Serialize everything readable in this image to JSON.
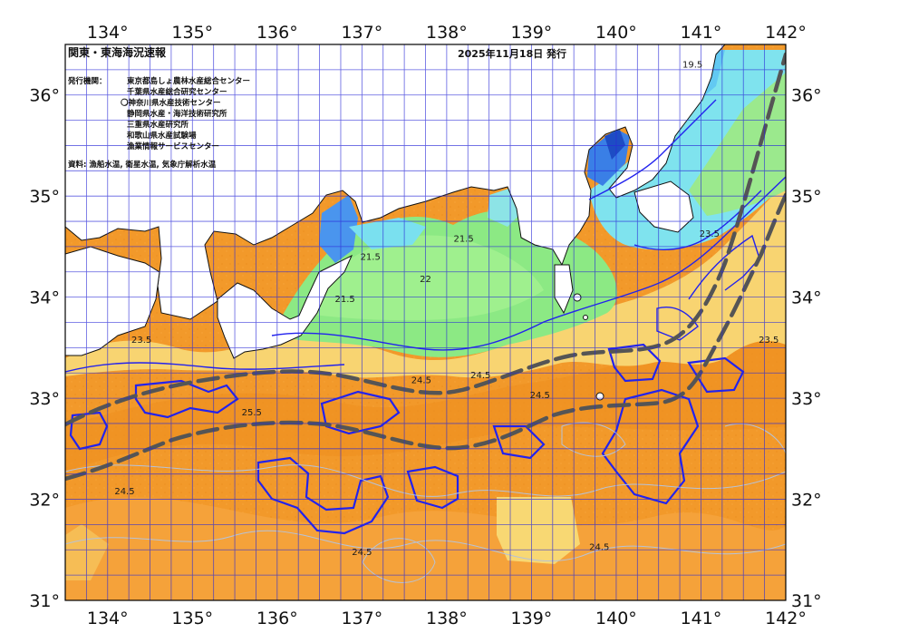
{
  "title": "関東・東海海況速報",
  "issue": "2025年11月18日 発行",
  "publisher_label": "発行機関：",
  "publishers": [
    "東京都島しょ農林水産総合センター",
    "千葉県水産総合研究センター",
    "神奈川県水産技術センター",
    "静岡県水産・海洋技術研究所",
    "三重県水産研究所",
    "和歌山県水産試験場",
    "漁業情報サービスセンター"
  ],
  "sources": "資料: 漁船水温, 衛星水温, 気象庁解析水温",
  "axes": {
    "lon_ticks": [
      "134°",
      "135°",
      "136°",
      "137°",
      "138°",
      "139°",
      "140°",
      "141°",
      "142°"
    ],
    "lat_ticks": [
      "36°",
      "35°",
      "34°",
      "33°",
      "32°",
      "31°"
    ],
    "lon_range": [
      133.5,
      142
    ],
    "lat_range": [
      31,
      36.5
    ]
  },
  "isotherm_labels": [
    {
      "text": "19.5",
      "lon": 140.9,
      "lat": 36.27
    },
    {
      "text": "21.5",
      "lon": 137.1,
      "lat": 34.37
    },
    {
      "text": "21.5",
      "lon": 138.2,
      "lat": 34.55
    },
    {
      "text": "22",
      "lon": 137.75,
      "lat": 34.15
    },
    {
      "text": "21.5",
      "lon": 136.8,
      "lat": 33.95
    },
    {
      "text": "23.5",
      "lon": 134.4,
      "lat": 33.55
    },
    {
      "text": "24.5",
      "lon": 137.7,
      "lat": 33.15
    },
    {
      "text": "24.5",
      "lon": 138.4,
      "lat": 33.2
    },
    {
      "text": "24.5",
      "lon": 139.1,
      "lat": 33.0
    },
    {
      "text": "25.5",
      "lon": 135.7,
      "lat": 32.83
    },
    {
      "text": "24.5",
      "lon": 134.2,
      "lat": 32.05
    },
    {
      "text": "24.5",
      "lon": 137.0,
      "lat": 31.45
    },
    {
      "text": "24.5",
      "lon": 139.8,
      "lat": 31.5
    },
    {
      "text": "23.5",
      "lon": 141.8,
      "lat": 33.55
    },
    {
      "text": "23.5",
      "lon": 141.1,
      "lat": 34.6
    }
  ],
  "kuroshio_axis_label": "",
  "colors": {
    "warm_deep": "#f0931e",
    "warm": "#f5a53a",
    "warm_light": "#fbc658",
    "yellow": "#f7df7e",
    "green_light": "#a8ef8a",
    "green": "#78e37c",
    "cyan": "#78e6f0",
    "blue": "#3c8cf0",
    "navy": "#1e50c8",
    "grid": "#2a2ad8",
    "isotherm_blue": "#2222ee",
    "isotherm_grey": "#b6c2d8",
    "land": "#ffffff",
    "kuroshio": "#555555"
  }
}
